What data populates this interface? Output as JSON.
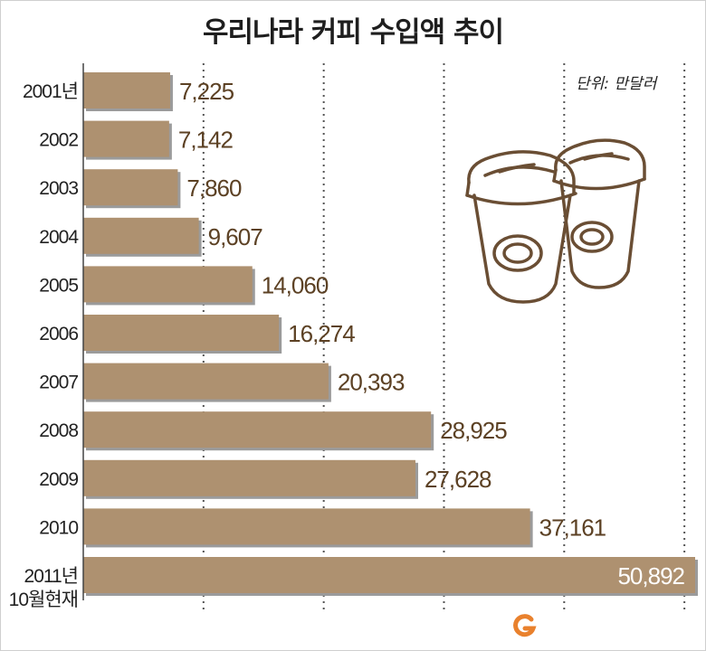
{
  "title": "우리나라 커피 수입액 추이",
  "unit_label": "단위: 만달러",
  "colors": {
    "bar": "#ae9170",
    "bar_shadow": "#9b9b9b",
    "value_text": "#5c4124",
    "value_text_inside": "#ffffff",
    "grid": "#555555",
    "cup_stroke": "#6a4e34"
  },
  "chart_data": {
    "type": "bar",
    "orientation": "horizontal",
    "title": "우리나라 커피 수입액 추이",
    "unit": "단위: 만달러",
    "categories": [
      [
        "2001년"
      ],
      [
        "2002"
      ],
      [
        "2003"
      ],
      [
        "2004"
      ],
      [
        "2005"
      ],
      [
        "2006"
      ],
      [
        "2007"
      ],
      [
        "2008"
      ],
      [
        "2009"
      ],
      [
        "2010"
      ],
      [
        "2011년",
        "10월현재"
      ]
    ],
    "values": [
      7225,
      7142,
      7860,
      9607,
      14060,
      16274,
      20393,
      28925,
      27628,
      37161,
      50892
    ],
    "value_labels": [
      "7,225",
      "7,142",
      "7,860",
      "9,607",
      "14,060",
      "16,274",
      "20,393",
      "28,925",
      "27,628",
      "37,161",
      "50,892"
    ],
    "xlim": [
      0,
      50892
    ],
    "grid": true,
    "grid_lines": [
      10000,
      20000,
      30000,
      40000,
      50000
    ]
  },
  "logo_icon": "g-logo-icon"
}
